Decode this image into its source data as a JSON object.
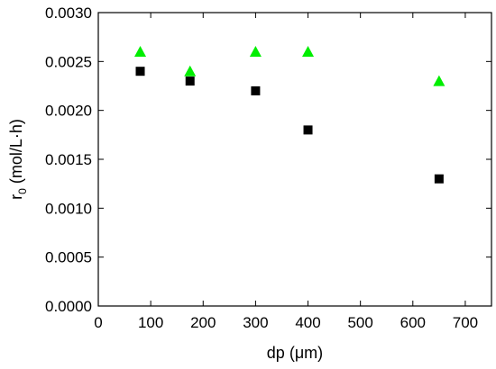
{
  "chart_data": {
    "type": "scatter",
    "title": "",
    "xlabel": "dp (μm)",
    "ylabel": {
      "prefix": "r",
      "subscript": "0",
      "suffix": " (mol/L·h)"
    },
    "xlim": [
      0,
      750
    ],
    "ylim": [
      0,
      0.003
    ],
    "xticks": [
      "0",
      "100",
      "200",
      "300",
      "400",
      "500",
      "600",
      "700"
    ],
    "yticks": [
      "0.0000",
      "0.0005",
      "0.0010",
      "0.0015",
      "0.0020",
      "0.0025",
      "0.0030"
    ],
    "grid": false,
    "legend": "none",
    "series": [
      {
        "marker": "square",
        "color": "#000000",
        "points": [
          [
            80,
            0.0024
          ],
          [
            175,
            0.0023
          ],
          [
            300,
            0.0022
          ],
          [
            400,
            0.0018
          ],
          [
            650,
            0.0013
          ]
        ]
      },
      {
        "marker": "triangle",
        "color": "#00ee00",
        "points": [
          [
            80,
            0.0026
          ],
          [
            175,
            0.0024
          ],
          [
            300,
            0.0026
          ],
          [
            400,
            0.0026
          ],
          [
            650,
            0.0023
          ]
        ]
      }
    ]
  }
}
